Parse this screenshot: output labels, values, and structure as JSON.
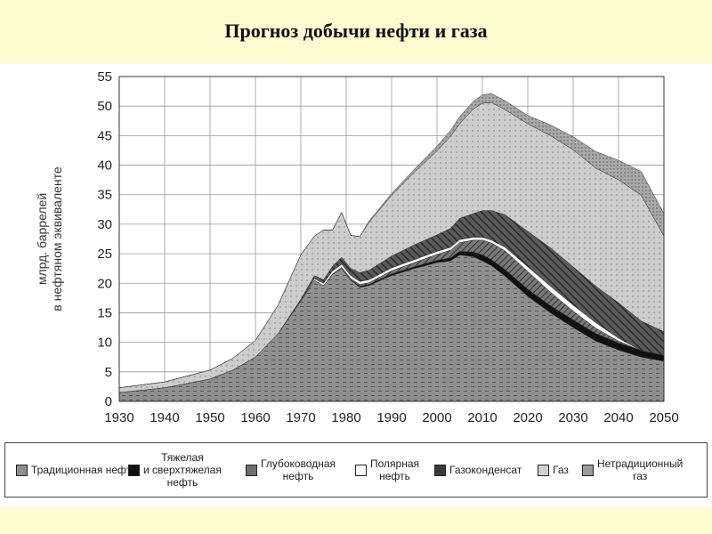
{
  "page": {
    "title": "Прогноз добычи нефти и газа"
  },
  "chart_data": {
    "type": "area",
    "stacked": true,
    "title": "",
    "xlabel": "",
    "ylabel": "млрд. баррелей\nв нефтяном эквиваленте",
    "xlim": [
      1930,
      2050
    ],
    "ylim": [
      0,
      55
    ],
    "xticks": [
      1930,
      1940,
      1950,
      1960,
      1970,
      1980,
      1990,
      2000,
      2010,
      2020,
      2030,
      2040,
      2050
    ],
    "yticks": [
      0,
      5,
      10,
      15,
      20,
      25,
      30,
      35,
      40,
      45,
      50,
      55
    ],
    "grid": true,
    "legend_position": "bottom",
    "x": [
      1930,
      1940,
      1950,
      1955,
      1960,
      1965,
      1970,
      1973,
      1975,
      1977,
      1979,
      1981,
      1983,
      1985,
      1990,
      1995,
      2000,
      2003,
      2005,
      2008,
      2010,
      2012,
      2015,
      2020,
      2025,
      2030,
      2035,
      2040,
      2045,
      2050
    ],
    "series": [
      {
        "name": "Традиционная нефть",
        "color": "#8f8f8f",
        "values": [
          1.5,
          2.3,
          3.8,
          5.3,
          7.5,
          11.5,
          17,
          20.5,
          19.6,
          21.5,
          22.5,
          20.5,
          19.3,
          19.6,
          21.3,
          22.5,
          23.5,
          23.8,
          24.8,
          24.5,
          23.8,
          23,
          21.2,
          17.8,
          15,
          12.5,
          10.2,
          8.7,
          7.5,
          6.8
        ]
      },
      {
        "name": "Тяжелая\nи сверхтяжелая\nнефть",
        "color": "#111111",
        "values": [
          0,
          0,
          0,
          0,
          0,
          0,
          0,
          0,
          0,
          0,
          0,
          0.1,
          0.2,
          0.2,
          0.3,
          0.3,
          0.4,
          0.5,
          0.6,
          0.8,
          1.0,
          1.0,
          1.1,
          1.2,
          1.2,
          1.3,
          1.3,
          1.2,
          1.1,
          1.0
        ]
      },
      {
        "name": "Глубоководная\nнефть",
        "color": "#6f6f6f",
        "values": [
          0,
          0,
          0,
          0,
          0,
          0,
          0,
          0,
          0,
          0.1,
          0.2,
          0.2,
          0.3,
          0.3,
          0.5,
          0.7,
          1.0,
          1.3,
          1.5,
          2.0,
          2.5,
          2.8,
          3.2,
          3.0,
          2.3,
          1.5,
          0.9,
          0.3,
          0,
          0
        ]
      },
      {
        "name": "Полярная\nнефть",
        "color": "#ffffff",
        "values": [
          0,
          0,
          0,
          0,
          0,
          0,
          0,
          0.3,
          0.4,
          0.5,
          0.5,
          0.5,
          0.5,
          0.5,
          0.5,
          0.5,
          0.5,
          0.5,
          0.5,
          0.5,
          0.5,
          0.5,
          0.6,
          0.8,
          1.0,
          1.0,
          0.9,
          0.5,
          0,
          0
        ]
      },
      {
        "name": "Газоконденсат",
        "color": "#555555",
        "values": [
          0,
          0,
          0,
          0,
          0,
          0,
          0.3,
          0.5,
          0.6,
          0.8,
          1.2,
          1.2,
          1.5,
          1.6,
          2.0,
          2.5,
          2.8,
          3.2,
          3.6,
          4.0,
          4.5,
          5.0,
          5.5,
          6.0,
          6.5,
          6.5,
          6.2,
          6.0,
          5.0,
          4.0
        ]
      },
      {
        "name": "Газ",
        "color": "#c9c9c9",
        "values": [
          0.8,
          1.0,
          1.5,
          2.0,
          2.8,
          4.8,
          7.5,
          6.7,
          8.4,
          6.1,
          7.6,
          5.6,
          6.1,
          8.1,
          10.3,
          12.3,
          14.2,
          15.6,
          16.0,
          17.7,
          18.2,
          18.3,
          17.8,
          18.2,
          19.0,
          19.8,
          20.0,
          20.8,
          21.3,
          16.2
        ]
      },
      {
        "name": "Нетрадиционный\nгаз",
        "color": "#9a9a9a",
        "values": [
          0,
          0,
          0,
          0,
          0,
          0,
          0,
          0,
          0,
          0,
          0,
          0,
          0,
          0.2,
          0.3,
          0.5,
          0.8,
          1.0,
          1.2,
          1.3,
          1.4,
          1.5,
          1.5,
          1.4,
          1.8,
          2.2,
          2.8,
          3.3,
          4.0,
          3.8
        ]
      }
    ]
  }
}
